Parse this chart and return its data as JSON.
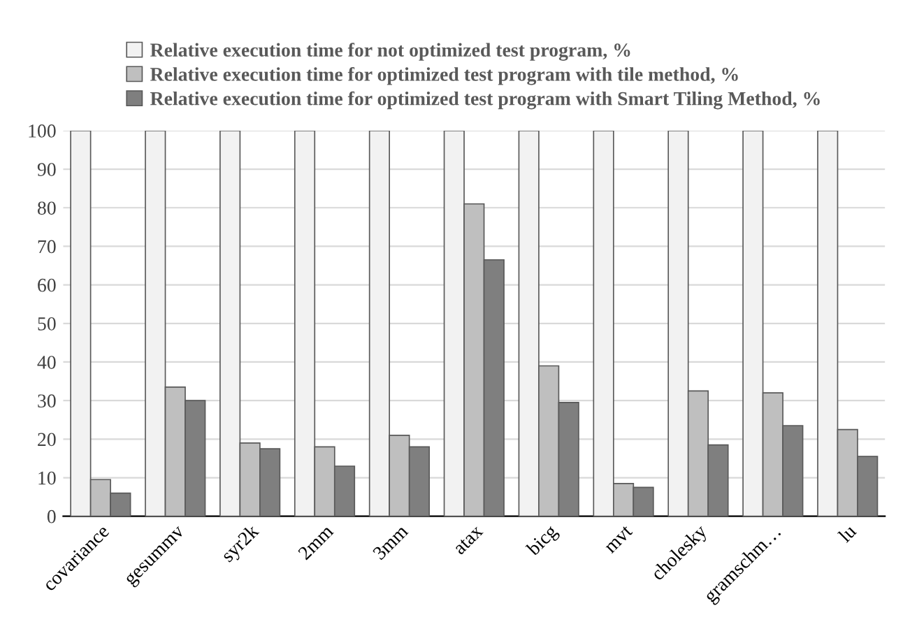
{
  "chart_data": {
    "type": "bar",
    "categories": [
      "covariance",
      "gesummv",
      "syr2k",
      "2mm",
      "3mm",
      "atax",
      "bicg",
      "mvt",
      "cholesky",
      "gramschm…",
      "lu"
    ],
    "series": [
      {
        "name": "Relative execution time for not optimized test program, %",
        "color": "#f2f2f2",
        "values": [
          100,
          100,
          100,
          100,
          100,
          100,
          100,
          100,
          100,
          100,
          100
        ]
      },
      {
        "name": "Relative execution time for optimized test program with tile method, %",
        "color": "#bfbfbf",
        "values": [
          9.5,
          33.5,
          19,
          18,
          21,
          81,
          39,
          8.5,
          32.5,
          32,
          22.5
        ]
      },
      {
        "name": "Relative execution time for optimized test program with Smart Tiling Method, %",
        "color": "#7f7f7f",
        "values": [
          6,
          30,
          17.5,
          13,
          18,
          66.5,
          29.5,
          7.5,
          18.5,
          23.5,
          15.5
        ]
      }
    ],
    "ylim": [
      0,
      100
    ],
    "yticks": [
      0,
      10,
      20,
      30,
      40,
      50,
      60,
      70,
      80,
      90,
      100
    ],
    "grid": "y",
    "legend": "top"
  }
}
